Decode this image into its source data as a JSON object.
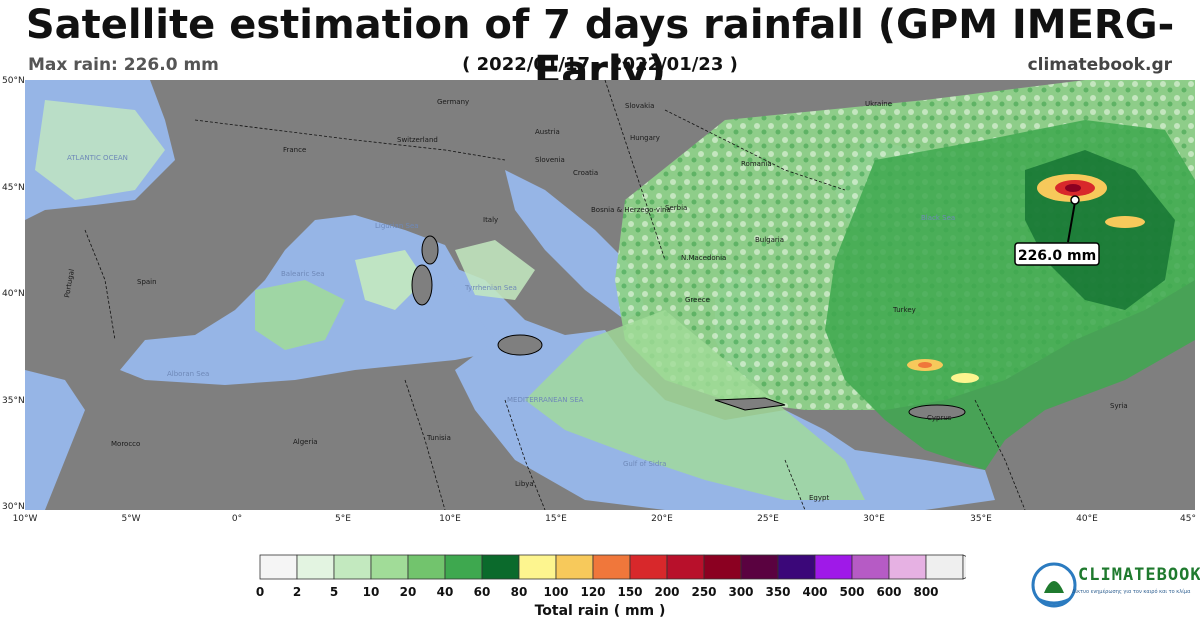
{
  "header": {
    "title": "Satellite estimation of 7 days rainfall (GPM IMERG-Early)",
    "max_rain": "Max rain: 226.0 mm",
    "date_range": "( 2022/01/17 - 2022/01/23 )",
    "site": "climatebook.gr"
  },
  "map": {
    "lat_labels": [
      "50°N",
      "45°N",
      "40°N",
      "35°N",
      "30°N"
    ],
    "lon_labels": [
      "10°W",
      "5°W",
      "0°",
      "5°E",
      "10°E",
      "15°E",
      "20°E",
      "25°E",
      "30°E",
      "35°E",
      "40°E",
      "45°"
    ],
    "countries": [
      "Germany",
      "Slovakia",
      "Ukraine",
      "Austria",
      "Hungary",
      "France",
      "Switzerland",
      "Slovenia",
      "Croatia",
      "Romania",
      "Bosnia & Herzego-vina",
      "Serbia",
      "Italy",
      "Bulgaria",
      "N.Macedonia",
      "Spain",
      "Portugal",
      "Greece",
      "Turkey",
      "Cyprus",
      "Syria",
      "Morocco",
      "Algeria",
      "Tunisia",
      "Libya",
      "Egypt"
    ],
    "seas": [
      "ATLANTIC OCEAN",
      "Black Sea",
      "Ligurian Sea",
      "Balearic Sea",
      "Tyrrhenian Sea",
      "Alboran Sea",
      "MEDITERRANEAN SEA",
      "Gulf of Sidra"
    ],
    "max_marker_label": "226.0 mm",
    "colors": {
      "land": "#7f7f7f",
      "sea": "#96b5e6"
    }
  },
  "legend": {
    "title": "Total rain ( mm )",
    "ticks": [
      "0",
      "2",
      "5",
      "10",
      "20",
      "40",
      "60",
      "80",
      "100",
      "120",
      "150",
      "200",
      "250",
      "300",
      "350",
      "400",
      "500",
      "600",
      "800"
    ],
    "colors": [
      "#f5f5f5",
      "#e3f4e1",
      "#c3e9bf",
      "#a1dc98",
      "#72c46d",
      "#3ea84f",
      "#0b6a2c",
      "#fdf58f",
      "#f7c95b",
      "#f0773b",
      "#d8282b",
      "#b8102b",
      "#8b0021",
      "#5a0240",
      "#3b0779",
      "#9f19e8",
      "#b65bc5",
      "#e6b1e3",
      "#efefef"
    ]
  },
  "logo": {
    "name": "CLIMATEBOOK",
    "tagline": "Δίκτυο ενημέρωσης για τον καιρό και το κλίμα"
  }
}
